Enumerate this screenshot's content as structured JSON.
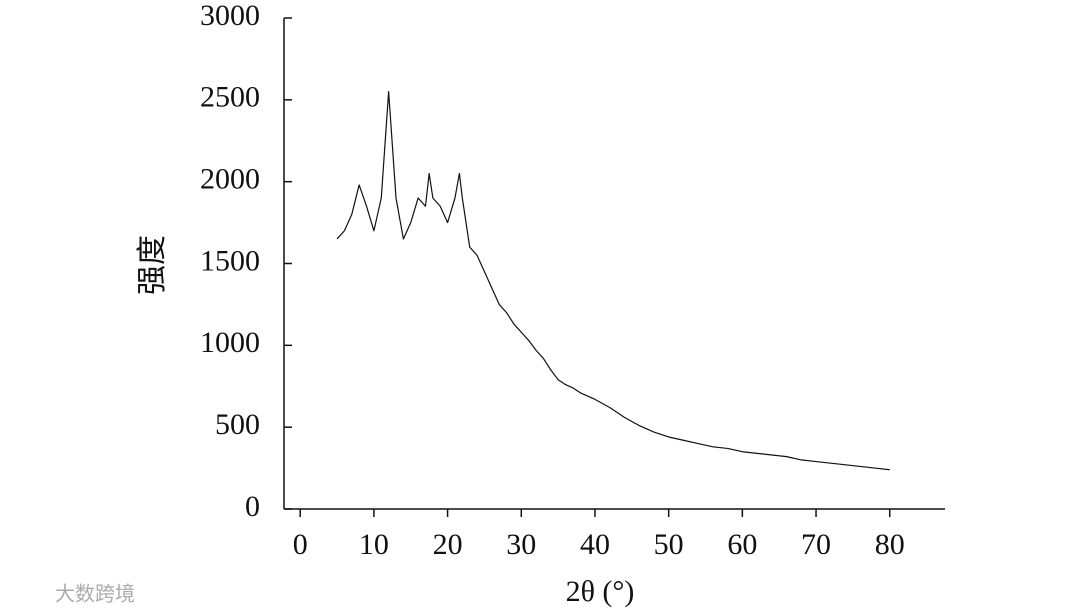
{
  "chart_data": {
    "type": "line",
    "x_label": "2θ (°)",
    "y_label": "强度",
    "watermark": "大数跨境",
    "xlim": [
      -2.2,
      87.5
    ],
    "ylim": [
      0,
      3000
    ],
    "xticks": [
      0,
      10,
      20,
      30,
      40,
      50,
      60,
      70,
      80
    ],
    "yticks": [
      0,
      500,
      1000,
      1500,
      2000,
      2500,
      3000
    ],
    "grid": false,
    "series": [
      {
        "color": "#111111",
        "x": [
          5,
          6,
          7,
          8,
          9,
          10,
          11,
          12,
          13,
          14,
          15,
          16,
          17,
          17.5,
          18,
          19,
          20,
          21,
          21.6,
          22,
          23,
          24,
          25,
          26,
          27,
          28,
          29,
          30,
          31,
          32,
          33,
          34,
          35,
          36,
          37,
          38,
          39,
          40,
          42,
          44,
          46,
          48,
          50,
          52,
          54,
          56,
          58,
          60,
          62,
          64,
          66,
          68,
          70,
          72,
          74,
          76,
          78,
          80
        ],
        "values": [
          1650,
          1700,
          1800,
          1980,
          1850,
          1700,
          1900,
          2550,
          1900,
          1650,
          1750,
          1900,
          1850,
          2050,
          1900,
          1850,
          1750,
          1900,
          2050,
          1900,
          1600,
          1550,
          1450,
          1350,
          1250,
          1200,
          1130,
          1080,
          1030,
          970,
          920,
          850,
          790,
          760,
          740,
          710,
          690,
          670,
          620,
          560,
          510,
          470,
          440,
          420,
          400,
          380,
          370,
          350,
          340,
          330,
          320,
          300,
          290,
          280,
          270,
          260,
          250,
          240
        ]
      }
    ]
  }
}
